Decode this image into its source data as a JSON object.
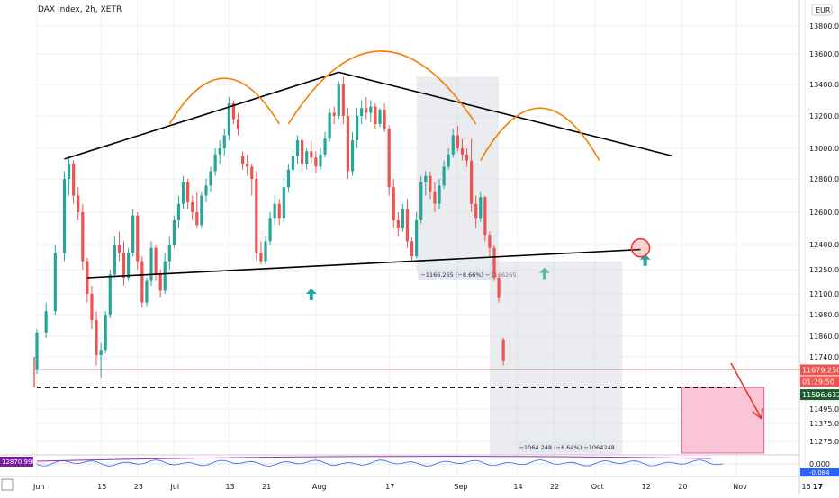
{
  "title": "DAX Index, 2h, XETR",
  "chart_data": {
    "type": "candlestick",
    "currency": "EUR",
    "y_ticks": [
      13800,
      13600,
      13400,
      13200,
      13000,
      12800,
      12600,
      12400,
      12250,
      12100,
      11980,
      11860,
      11740,
      11495,
      11375,
      11275
    ],
    "y_tick_labels": [
      "13800.000",
      "13600.000",
      "13400.000",
      "13200.000",
      "13000.000",
      "12800.000",
      "12600.000",
      "12400.000",
      "12250.000",
      "12100.000",
      "11980.000",
      "11860.000",
      "11740.000",
      "11495.000",
      "11375.000",
      "11275.000"
    ],
    "x_tick_labels": [
      "Jun",
      "15",
      "23",
      "Jul",
      "13",
      "21",
      "Aug",
      "17",
      "Sep",
      "14",
      "22",
      "Oct",
      "12",
      "20",
      "Nov",
      "16"
    ],
    "x_ticks_days": [
      0,
      14,
      22,
      30,
      42,
      50,
      61,
      77,
      92,
      105,
      113,
      122,
      133,
      141,
      153,
      168
    ],
    "ohlc": [
      [
        0,
        11680,
        11900,
        11660,
        11880
      ],
      [
        2,
        11880,
        12050,
        11850,
        12000
      ],
      [
        4,
        12000,
        12400,
        11980,
        12350
      ],
      [
        6,
        12350,
        12850,
        12300,
        12800
      ],
      [
        7,
        12800,
        12950,
        12700,
        12900
      ],
      [
        8,
        12900,
        12920,
        12650,
        12700
      ],
      [
        9,
        12700,
        12750,
        12550,
        12600
      ],
      [
        10,
        12600,
        12650,
        12250,
        12300
      ],
      [
        11,
        12300,
        12320,
        12050,
        12100
      ],
      [
        12,
        12100,
        12150,
        11900,
        11950
      ],
      [
        13,
        11950,
        12000,
        11700,
        11750
      ],
      [
        14,
        11750,
        11820,
        11640,
        11780
      ],
      [
        15,
        11780,
        12000,
        11760,
        11980
      ],
      [
        16,
        11980,
        12250,
        11960,
        12220
      ],
      [
        17,
        12220,
        12450,
        12200,
        12400
      ],
      [
        18,
        12400,
        12480,
        12300,
        12350
      ],
      [
        19,
        12350,
        12420,
        12150,
        12200
      ],
      [
        20,
        12200,
        12380,
        12180,
        12350
      ],
      [
        21,
        12350,
        12620,
        12330,
        12580
      ],
      [
        22,
        12580,
        12600,
        12250,
        12300
      ],
      [
        23,
        12300,
        12330,
        12020,
        12050
      ],
      [
        24,
        12050,
        12200,
        12030,
        12180
      ],
      [
        25,
        12180,
        12420,
        12150,
        12380
      ],
      [
        26,
        12380,
        12400,
        12180,
        12220
      ],
      [
        27,
        12220,
        12250,
        12080,
        12120
      ],
      [
        28,
        12120,
        12350,
        12100,
        12300
      ],
      [
        29,
        12300,
        12450,
        12250,
        12400
      ],
      [
        30,
        12400,
        12580,
        12380,
        12550
      ],
      [
        31,
        12550,
        12700,
        12500,
        12650
      ],
      [
        32,
        12650,
        12820,
        12620,
        12780
      ],
      [
        33,
        12780,
        12800,
        12620,
        12660
      ],
      [
        34,
        12660,
        12700,
        12550,
        12600
      ],
      [
        35,
        12600,
        12720,
        12500,
        12520
      ],
      [
        36,
        12520,
        12720,
        12500,
        12700
      ],
      [
        37,
        12700,
        12800,
        12660,
        12760
      ],
      [
        38,
        12760,
        12880,
        12720,
        12850
      ],
      [
        39,
        12850,
        13000,
        12820,
        12960
      ],
      [
        40,
        12960,
        13050,
        12900,
        13000
      ],
      [
        41,
        13000,
        13120,
        12950,
        13080
      ],
      [
        42,
        13080,
        13320,
        13050,
        13280
      ],
      [
        43,
        13280,
        13300,
        13150,
        13180
      ],
      [
        44,
        13180,
        13220,
        13080,
        13120
      ],
      [
        45,
        12950,
        12980,
        12860,
        12900
      ],
      [
        46,
        12900,
        12960,
        12820,
        12880
      ],
      [
        47,
        12880,
        12900,
        12700,
        12800
      ],
      [
        48,
        12800,
        12850,
        12300,
        12350
      ],
      [
        49,
        12350,
        12420,
        12280,
        12300
      ],
      [
        50,
        12300,
        12450,
        12280,
        12420
      ],
      [
        51,
        12420,
        12600,
        12400,
        12560
      ],
      [
        52,
        12560,
        12700,
        12520,
        12650
      ],
      [
        53,
        12650,
        12680,
        12520,
        12560
      ],
      [
        54,
        12560,
        12800,
        12540,
        12750
      ],
      [
        55,
        12750,
        12900,
        12720,
        12860
      ],
      [
        56,
        12860,
        13000,
        12820,
        12950
      ],
      [
        57,
        12950,
        13080,
        12900,
        13050
      ],
      [
        58,
        13050,
        13060,
        12850,
        12900
      ],
      [
        59,
        12900,
        13000,
        12860,
        12980
      ],
      [
        60,
        12980,
        13050,
        12900,
        12940
      ],
      [
        61,
        12940,
        12980,
        12840,
        12880
      ],
      [
        62,
        12880,
        13000,
        12860,
        12960
      ],
      [
        63,
        12960,
        13100,
        12940,
        13060
      ],
      [
        64,
        13060,
        13250,
        13040,
        13220
      ],
      [
        65,
        13220,
        13260,
        13150,
        13200
      ],
      [
        66,
        13200,
        13420,
        13180,
        13400
      ],
      [
        67,
        13400,
        13450,
        13150,
        13200
      ],
      [
        68,
        13200,
        13250,
        12800,
        12850
      ],
      [
        69,
        12850,
        13100,
        12820,
        13050
      ],
      [
        70,
        13050,
        13250,
        13000,
        13200
      ],
      [
        71,
        13200,
        13300,
        13150,
        13250
      ],
      [
        72,
        13250,
        13320,
        13180,
        13220
      ],
      [
        73,
        13220,
        13300,
        13160,
        13260
      ],
      [
        74,
        13260,
        13280,
        13120,
        13150
      ],
      [
        75,
        13150,
        13250,
        13130,
        13240
      ],
      [
        76,
        13240,
        13280,
        13100,
        13120
      ],
      [
        77,
        13120,
        13140,
        12700,
        12750
      ],
      [
        78,
        12750,
        12800,
        12500,
        12550
      ],
      [
        79,
        12550,
        12600,
        12450,
        12500
      ],
      [
        80,
        12500,
        12650,
        12480,
        12620
      ],
      [
        81,
        12620,
        12680,
        12380,
        12420
      ],
      [
        82,
        12420,
        12440,
        12300,
        12330
      ],
      [
        83,
        12330,
        12600,
        12320,
        12550
      ],
      [
        84,
        12550,
        12820,
        12530,
        12780
      ],
      [
        85,
        12780,
        12850,
        12700,
        12820
      ],
      [
        86,
        12820,
        12850,
        12680,
        12720
      ],
      [
        87,
        12720,
        12780,
        12600,
        12650
      ],
      [
        88,
        12650,
        12800,
        12620,
        12760
      ],
      [
        89,
        12760,
        12920,
        12740,
        12880
      ],
      [
        90,
        12880,
        13000,
        12860,
        12960
      ],
      [
        91,
        12960,
        13120,
        12940,
        13080
      ],
      [
        92,
        13080,
        13140,
        12980,
        13000
      ],
      [
        93,
        13000,
        13060,
        12920,
        12960
      ],
      [
        94,
        12960,
        13000,
        12880,
        12920
      ],
      [
        95,
        12920,
        13060,
        12600,
        12650
      ],
      [
        96,
        12650,
        12700,
        12500,
        12560
      ],
      [
        97,
        12560,
        12720,
        12540,
        12690
      ],
      [
        98,
        12690,
        12700,
        12420,
        12460
      ],
      [
        99,
        12460,
        12480,
        12320,
        12380
      ],
      [
        100,
        12380,
        12400,
        12180,
        12200
      ],
      [
        101,
        12200,
        12210,
        12050,
        12080
      ],
      [
        102,
        11840,
        11850,
        11700,
        11720
      ]
    ],
    "trendlines": [
      {
        "name": "left-neckline",
        "points": [
          [
            6,
            12930
          ],
          [
            66,
            13480
          ]
        ]
      },
      {
        "name": "right-downtrend",
        "points": [
          [
            66,
            13480
          ],
          [
            139,
            12950
          ]
        ]
      },
      {
        "name": "neckline",
        "points": [
          [
            11,
            12200
          ],
          [
            132,
            12370
          ]
        ]
      },
      {
        "name": "target-level",
        "points": [
          [
            0,
            11596
          ],
          [
            153,
            11596
          ]
        ]
      }
    ],
    "arcs": [
      {
        "name": "left-shoulder",
        "from": [
          29,
          13150
        ],
        "to": [
          53,
          13150
        ],
        "peak": [
          41,
          13440
        ]
      },
      {
        "name": "head",
        "from": [
          55,
          13150
        ],
        "to": [
          96,
          13150
        ],
        "peak": [
          75,
          13620
        ]
      },
      {
        "name": "right-shoulder",
        "from": [
          97,
          12920
        ],
        "to": [
          123,
          12920
        ],
        "peak": [
          110,
          13250
        ]
      }
    ],
    "boxes": [
      {
        "name": "measure-left",
        "x0": 83,
        "x1": 101,
        "y0": 12240,
        "y1": 13450,
        "label": "−1166.265 (−8.66%) −1166265"
      },
      {
        "name": "measure-right",
        "x0": 99,
        "x1": 128,
        "y0": 11200,
        "y1": 12300,
        "label": "−1064.248 (−8.64%) −1064248"
      },
      {
        "name": "target-zone",
        "x0": 141,
        "x1": 159,
        "y0": 11210,
        "y1": 11596
      }
    ],
    "arrows": [
      {
        "name": "up-arrow-1",
        "x": 60,
        "y": 12100,
        "color": "#26a69a"
      },
      {
        "name": "up-arrow-2",
        "x": 111,
        "y": 12230,
        "color": "#5fb7a8"
      },
      {
        "name": "up-arrow-3",
        "x": 133,
        "y": 12310,
        "color": "#26a69a"
      }
    ],
    "price_tags": [
      {
        "name": "last-price",
        "value": "11679.250",
        "color": "#ef5350"
      },
      {
        "name": "countdown",
        "value": "01:29:50",
        "color": "#ef5350"
      },
      {
        "name": "target-price",
        "value": "11596.632",
        "color": "#1a5c2e"
      }
    ],
    "indicator": {
      "label_left": "12870.990",
      "y_labels": [
        "0.000",
        "-0.084"
      ]
    }
  }
}
